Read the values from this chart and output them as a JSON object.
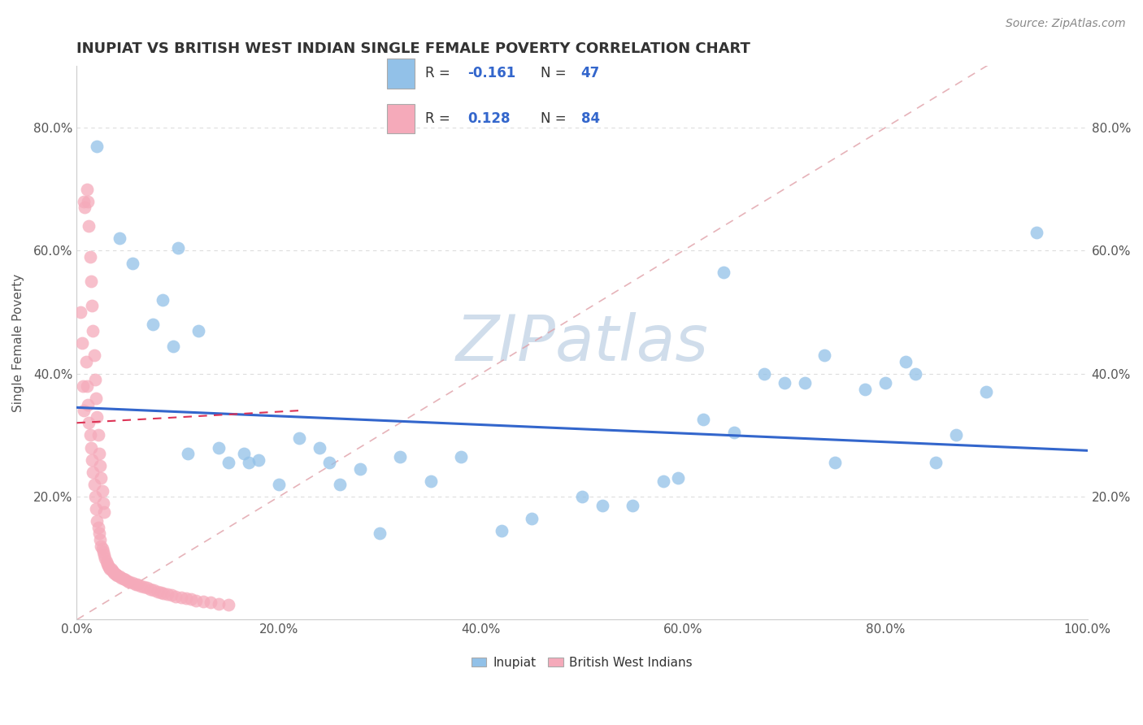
{
  "title": "INUPIAT VS BRITISH WEST INDIAN SINGLE FEMALE POVERTY CORRELATION CHART",
  "source": "Source: ZipAtlas.com",
  "ylabel": "Single Female Poverty",
  "xlim": [
    0,
    1.0
  ],
  "ylim": [
    0,
    0.9
  ],
  "xtick_positions": [
    0,
    0.2,
    0.4,
    0.6,
    0.8,
    1.0
  ],
  "xtick_labels": [
    "0.0%",
    "20.0%",
    "40.0%",
    "60.0%",
    "80.0%",
    "100.0%"
  ],
  "ytick_positions": [
    0.2,
    0.4,
    0.6,
    0.8
  ],
  "ytick_labels": [
    "20.0%",
    "40.0%",
    "60.0%",
    "80.0%"
  ],
  "blue_color": "#92C1E8",
  "pink_color": "#F5AABA",
  "trend_blue_color": "#3366CC",
  "trend_pink_color": "#DD3355",
  "grid_color": "#DDDDDD",
  "watermark_color": "#C8D8E8",
  "inupiat_x": [
    0.02,
    0.042,
    0.055,
    0.075,
    0.085,
    0.095,
    0.1,
    0.11,
    0.12,
    0.14,
    0.15,
    0.165,
    0.17,
    0.18,
    0.2,
    0.22,
    0.24,
    0.25,
    0.26,
    0.28,
    0.3,
    0.32,
    0.35,
    0.38,
    0.42,
    0.45,
    0.5,
    0.52,
    0.55,
    0.58,
    0.595,
    0.62,
    0.64,
    0.65,
    0.68,
    0.7,
    0.72,
    0.74,
    0.75,
    0.78,
    0.8,
    0.82,
    0.83,
    0.85,
    0.87,
    0.9,
    0.95
  ],
  "inupiat_y": [
    0.77,
    0.62,
    0.58,
    0.48,
    0.52,
    0.445,
    0.605,
    0.27,
    0.47,
    0.28,
    0.255,
    0.27,
    0.255,
    0.26,
    0.22,
    0.295,
    0.28,
    0.255,
    0.22,
    0.245,
    0.14,
    0.265,
    0.225,
    0.265,
    0.145,
    0.165,
    0.2,
    0.185,
    0.185,
    0.225,
    0.23,
    0.325,
    0.565,
    0.305,
    0.4,
    0.385,
    0.385,
    0.43,
    0.255,
    0.375,
    0.385,
    0.42,
    0.4,
    0.255,
    0.3,
    0.37,
    0.63
  ],
  "bwi_x": [
    0.004,
    0.005,
    0.006,
    0.007,
    0.007,
    0.008,
    0.009,
    0.01,
    0.01,
    0.011,
    0.011,
    0.012,
    0.012,
    0.013,
    0.013,
    0.014,
    0.014,
    0.015,
    0.015,
    0.016,
    0.016,
    0.017,
    0.017,
    0.018,
    0.018,
    0.019,
    0.019,
    0.02,
    0.02,
    0.021,
    0.021,
    0.022,
    0.022,
    0.023,
    0.023,
    0.024,
    0.024,
    0.025,
    0.025,
    0.026,
    0.026,
    0.027,
    0.027,
    0.028,
    0.029,
    0.03,
    0.031,
    0.032,
    0.033,
    0.034,
    0.035,
    0.036,
    0.037,
    0.038,
    0.039,
    0.04,
    0.042,
    0.044,
    0.046,
    0.048,
    0.05,
    0.052,
    0.055,
    0.058,
    0.06,
    0.063,
    0.066,
    0.07,
    0.073,
    0.076,
    0.08,
    0.083,
    0.086,
    0.09,
    0.094,
    0.098,
    0.103,
    0.108,
    0.113,
    0.118,
    0.125,
    0.132,
    0.14,
    0.15
  ],
  "bwi_y": [
    0.5,
    0.45,
    0.38,
    0.34,
    0.68,
    0.67,
    0.42,
    0.38,
    0.7,
    0.35,
    0.68,
    0.32,
    0.64,
    0.3,
    0.59,
    0.28,
    0.55,
    0.26,
    0.51,
    0.24,
    0.47,
    0.22,
    0.43,
    0.2,
    0.39,
    0.18,
    0.36,
    0.16,
    0.33,
    0.15,
    0.3,
    0.14,
    0.27,
    0.13,
    0.25,
    0.12,
    0.23,
    0.115,
    0.21,
    0.11,
    0.19,
    0.105,
    0.175,
    0.1,
    0.095,
    0.09,
    0.088,
    0.085,
    0.083,
    0.082,
    0.08,
    0.078,
    0.076,
    0.075,
    0.073,
    0.072,
    0.07,
    0.068,
    0.067,
    0.065,
    0.063,
    0.062,
    0.06,
    0.058,
    0.057,
    0.055,
    0.053,
    0.052,
    0.05,
    0.048,
    0.046,
    0.044,
    0.043,
    0.041,
    0.04,
    0.038,
    0.036,
    0.035,
    0.033,
    0.031,
    0.03,
    0.028,
    0.026,
    0.025
  ],
  "inupiat_trend_x0": 0.0,
  "inupiat_trend_y0": 0.345,
  "inupiat_trend_x1": 1.0,
  "inupiat_trend_y1": 0.275,
  "bwi_trend_x0": 0.0,
  "bwi_trend_y0": 0.32,
  "bwi_trend_x1": 0.22,
  "bwi_trend_y1": 0.34
}
